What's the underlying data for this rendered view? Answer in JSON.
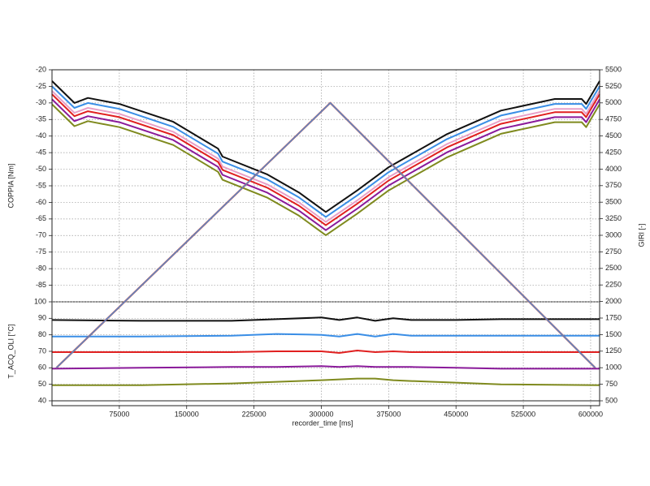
{
  "chart_data": {
    "type": "line",
    "xlabel": "recorder_time [ms]",
    "xlim": [
      0,
      610000
    ],
    "xticks": [
      75000,
      150000,
      225000,
      300000,
      375000,
      450000,
      525000,
      600000
    ],
    "grid": true,
    "y2label": "GIRI [-]",
    "y2lim": [
      500,
      5500
    ],
    "y2ticks": [
      500,
      750,
      1000,
      1250,
      1500,
      1750,
      2000,
      2250,
      2500,
      2750,
      3000,
      3250,
      3500,
      3750,
      4000,
      4250,
      4500,
      4750,
      5000,
      5250,
      5500
    ],
    "x": [
      5000,
      310000,
      605000
    ],
    "series": [
      {
        "color": "#c0504d",
        "axis": "y2",
        "values": [
          1000,
          5000,
          1000
        ]
      },
      {
        "color": "#4a90d9",
        "axis": "y2",
        "values": [
          1000,
          5000,
          1000
        ]
      }
    ],
    "panels": [
      {
        "ylabel": "COPPIA [Nm]",
        "ylim": [
          -90,
          -20
        ],
        "yticks": [
          -85,
          -80,
          -75,
          -70,
          -65,
          -60,
          -55,
          -50,
          -45,
          -40,
          -35,
          -30,
          -25,
          -20
        ],
        "x": [
          0,
          25000,
          40000,
          75000,
          135000,
          185000,
          190000,
          240000,
          275000,
          305000,
          340000,
          375000,
          440000,
          500000,
          560000,
          590000,
          595000,
          610000
        ],
        "series": [
          {
            "color": "#111111",
            "values": [
              -23.4,
              -30,
              -28.5,
              -30.3,
              -35.7,
              -43.8,
              -46.2,
              -51.6,
              -57,
              -62.9,
              -56.4,
              -49.4,
              -39.4,
              -32.3,
              -28.8,
              -28.8,
              -30.3,
              -23.4
            ]
          },
          {
            "color": "#3a8ee6",
            "values": [
              -25,
              -31.5,
              -30,
              -31.8,
              -37.2,
              -45.3,
              -47.7,
              -53.1,
              -58.5,
              -64.4,
              -57.9,
              -50.9,
              -40.9,
              -33.8,
              -30.3,
              -30.3,
              -31.8,
              -25
            ]
          },
          {
            "color": "#e8a0c8",
            "values": [
              -26.4,
              -33,
              -31.5,
              -33.3,
              -38.7,
              -46.8,
              -49.2,
              -54.6,
              -60,
              -65.9,
              -59.4,
              -52.4,
              -42.4,
              -35.3,
              -31.8,
              -31.8,
              -33.3,
              -26.4
            ]
          },
          {
            "color": "#e02020",
            "values": [
              -27.4,
              -34,
              -32.5,
              -34.3,
              -39.7,
              -47.8,
              -50.2,
              -55.6,
              -61,
              -66.9,
              -60.4,
              -53.4,
              -43.4,
              -36.3,
              -32.8,
              -32.8,
              -34.3,
              -27.4
            ]
          },
          {
            "color": "#8a1a9a",
            "values": [
              -28.9,
              -35.5,
              -34,
              -35.8,
              -41.2,
              -49.3,
              -51.7,
              -57.1,
              -62.5,
              -68.4,
              -61.9,
              -54.9,
              -44.9,
              -37.8,
              -34.3,
              -34.3,
              -35.8,
              -28.9
            ]
          },
          {
            "color": "#7f8a1e",
            "values": [
              -30.4,
              -37,
              -35.5,
              -37.3,
              -42.7,
              -50.8,
              -53.2,
              -58.6,
              -64,
              -69.9,
              -63.4,
              -56.4,
              -46.4,
              -39.3,
              -35.8,
              -35.8,
              -37.3,
              -30.4
            ]
          }
        ]
      },
      {
        "ylabel": "T_ACQ_OLI [°C]",
        "ylim": [
          40,
          100
        ],
        "yticks": [
          40,
          50,
          60,
          70,
          80,
          90,
          100
        ],
        "x": [
          0,
          100000,
          200000,
          250000,
          300000,
          320000,
          340000,
          360000,
          380000,
          400000,
          450000,
          500000,
          610000
        ],
        "series": [
          {
            "color": "#111111",
            "values": [
              89,
              88.5,
              88.5,
              89.5,
              90.5,
              89,
              90.5,
              88.5,
              90,
              89,
              89,
              89.5,
              89.5
            ]
          },
          {
            "color": "#3a8ee6",
            "values": [
              79,
              79,
              79.5,
              80.5,
              80,
              79,
              80.5,
              79,
              80.5,
              79.5,
              79.5,
              79.5,
              79.5
            ]
          },
          {
            "color": "#e02020",
            "values": [
              69.5,
              69.5,
              69.5,
              70,
              70,
              69,
              70.5,
              69.5,
              70,
              69.5,
              69.5,
              69.5,
              69.5
            ]
          },
          {
            "color": "#8a1a9a",
            "values": [
              59.5,
              60,
              60.5,
              60.5,
              61,
              60.5,
              61,
              60.5,
              60.5,
              60.5,
              60,
              59.5,
              59.5
            ]
          },
          {
            "color": "#7f8a1e",
            "values": [
              49.5,
              49.5,
              50.5,
              51.5,
              52.5,
              53,
              53.5,
              53.5,
              52.5,
              52,
              51,
              50,
              49.5
            ]
          }
        ]
      }
    ]
  }
}
